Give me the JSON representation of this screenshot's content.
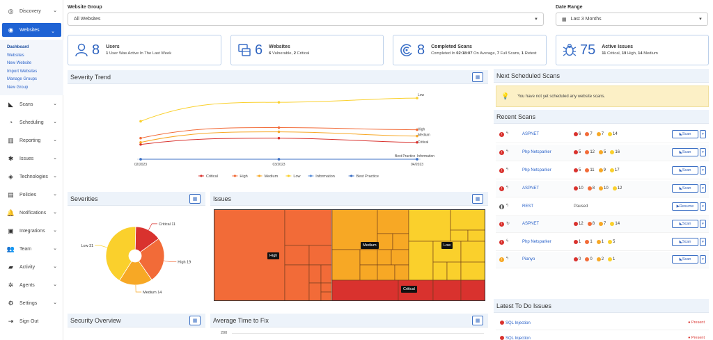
{
  "sidebar": {
    "items": [
      {
        "label": "Discovery",
        "icon": "target-icon",
        "chevron": true
      },
      {
        "label": "Websites",
        "icon": "globe-icon",
        "chevron": true,
        "active": true
      },
      {
        "label": "Scans",
        "icon": "radar-icon",
        "chevron": true
      },
      {
        "label": "Scheduling",
        "icon": "clock-icon",
        "chevron": true
      },
      {
        "label": "Reporting",
        "icon": "bar-chart-icon",
        "chevron": true
      },
      {
        "label": "Issues",
        "icon": "bug-icon",
        "chevron": true
      },
      {
        "label": "Technologies",
        "icon": "layers-icon",
        "chevron": true
      },
      {
        "label": "Policies",
        "icon": "clipboard-icon",
        "chevron": true
      },
      {
        "label": "Notifications",
        "icon": "bell-icon",
        "chevron": true
      },
      {
        "label": "Integrations",
        "icon": "plug-icon",
        "chevron": true
      },
      {
        "label": "Team",
        "icon": "team-icon",
        "chevron": true
      },
      {
        "label": "Activity",
        "icon": "book-icon",
        "chevron": true
      },
      {
        "label": "Agents",
        "icon": "asterisk-icon",
        "chevron": true
      },
      {
        "label": "Settings",
        "icon": "gear-icon",
        "chevron": true
      },
      {
        "label": "Sign Out",
        "icon": "sign-out-icon",
        "chevron": false
      }
    ],
    "subitems": [
      "Dashboard",
      "Websites",
      "New Website",
      "Import Websites",
      "Manage Groups",
      "New Group"
    ]
  },
  "filters": {
    "group_label": "Website Group",
    "group_value": "All Websites",
    "date_label": "Date Range",
    "date_value": "Last 3 Months"
  },
  "stats": [
    {
      "number": "8",
      "title": "Users",
      "desc_bold": "1",
      "desc": " User Was Active In The Last Week",
      "icon": "user-icon"
    },
    {
      "number": "6",
      "title": "Websites",
      "desc_bold": "6",
      "desc": " Vulnerable, ",
      "desc_bold2": "2",
      "desc2": " Critical",
      "icon": "browser-icon"
    },
    {
      "number": "8",
      "title": "Completed Scans",
      "desc": "Completed In ",
      "desc_bold": "02:18:07",
      "desc2": " On Average, ",
      "desc_bold2": "7",
      "desc3": " Full Scans, ",
      "desc_bold3": "1",
      "desc4": " Retest",
      "icon": "radar-icon"
    },
    {
      "number": "75",
      "title": "Active Issues",
      "desc_bold": "11",
      "desc": " Critical, ",
      "desc_bold2": "19",
      "desc2": " High, ",
      "desc_bold3": "14",
      "desc3": " Medium",
      "icon": "bug-icon"
    }
  ],
  "panels": {
    "severity_trend": "Severity Trend",
    "severities": "Severities",
    "issues": "Issues",
    "security_overview": "Security Overview",
    "avg_time": "Average Time to Fix",
    "next_scans": "Next Scheduled Scans",
    "recent_scans": "Recent Scans",
    "todo": "Latest To Do Issues"
  },
  "notice": "You have not yet scheduled any website scans.",
  "colors": {
    "critical": "#d9322e",
    "high": "#f26b38",
    "medium": "#f7a825",
    "low": "#fad02c",
    "information": "#5b8fd9",
    "best_practice": "#3b6fc4",
    "accent": "#1f63d4"
  },
  "chart_data": [
    {
      "type": "line",
      "x": [
        "02/2023",
        "03/2023",
        "04/2023"
      ],
      "series": [
        {
          "name": "Critical",
          "values": [
            7,
            10,
            8
          ]
        },
        {
          "name": "High",
          "values": [
            10,
            15,
            14
          ]
        },
        {
          "name": "Medium",
          "values": [
            8,
            13,
            11
          ]
        },
        {
          "name": "Low",
          "values": [
            18,
            27,
            29
          ]
        },
        {
          "name": "Information",
          "values": [
            0,
            0,
            0
          ]
        },
        {
          "name": "Best Practice",
          "values": [
            0,
            0,
            0
          ]
        }
      ],
      "end_labels": [
        "Low",
        "High",
        "Medium",
        "Critical",
        "Best Practice",
        "Information"
      ],
      "ylim": [
        0,
        32
      ],
      "legend": "bottom"
    },
    {
      "type": "pie",
      "labels": [
        "Critical",
        "High",
        "Medium",
        "Low"
      ],
      "values": [
        11,
        19,
        14,
        31
      ],
      "slice_labels": [
        "Critical 11",
        "High 19",
        "Medium 14",
        "Low 31"
      ],
      "donut": true
    },
    {
      "type": "treemap",
      "labels": [
        "High",
        "Medium",
        "Low",
        "Critical"
      ]
    },
    {
      "type": "line",
      "ytick_visible": "200"
    }
  ],
  "recent_scans": [
    {
      "status": "critical",
      "name": "ASPNET",
      "counts": [
        6,
        7,
        7,
        14
      ],
      "action": "Scan",
      "type_icon": "bolt-icon"
    },
    {
      "status": "critical",
      "name": "Php Netsparker",
      "counts": [
        5,
        12,
        5,
        16
      ],
      "action": "Scan",
      "type_icon": "bolt-icon"
    },
    {
      "status": "critical",
      "name": "Php Netsparker",
      "counts": [
        5,
        11,
        9,
        17
      ],
      "action": "Scan",
      "type_icon": "bolt-icon"
    },
    {
      "status": "critical",
      "name": "ASPNET",
      "counts": [
        10,
        8,
        10,
        12
      ],
      "action": "Scan",
      "type_icon": "bolt-icon"
    },
    {
      "status": "paused",
      "name": "REST",
      "paused_text": "Paused",
      "action": "Resume",
      "type_icon": "bolt-icon"
    },
    {
      "status": "critical",
      "name": "ASPNET",
      "counts": [
        12,
        8,
        7,
        14
      ],
      "action": "Scan",
      "type_icon": "refresh-icon"
    },
    {
      "status": "critical",
      "name": "Php Netsparker",
      "counts": [
        1,
        1,
        1,
        5
      ],
      "action": "Scan",
      "type_icon": "bolt-icon"
    },
    {
      "status": "medium",
      "name": "Pianyo",
      "counts": [
        0,
        0,
        2,
        1
      ],
      "action": "Scan",
      "type_icon": "bolt-icon"
    }
  ],
  "todo_issues": [
    {
      "name": "SQL Injection",
      "state": "Present"
    },
    {
      "name": "SQL Injection",
      "state": "Present"
    }
  ]
}
